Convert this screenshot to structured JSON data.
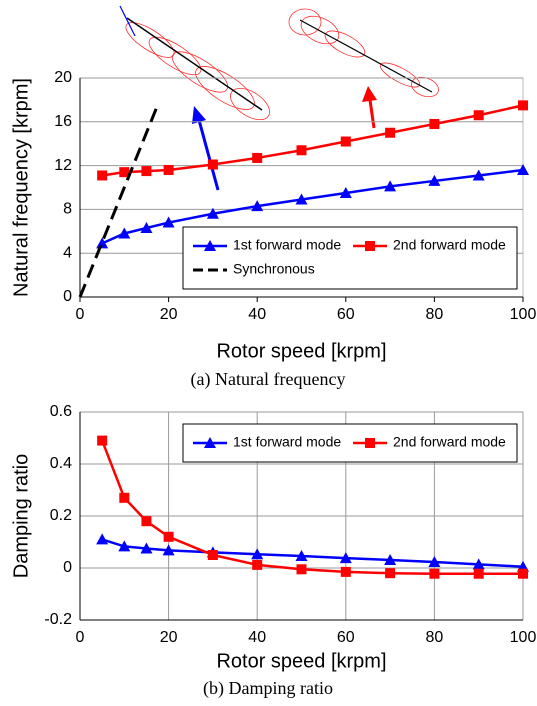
{
  "chart_data": [
    {
      "type": "line",
      "caption": "(a) Natural frequency",
      "xlabel": "Rotor speed [krpm]",
      "ylabel": "Natural frequency [krpm]",
      "xlim": [
        0,
        100
      ],
      "xticks": [
        0,
        20,
        40,
        60,
        80,
        100
      ],
      "ylim": [
        0,
        20
      ],
      "yticks": [
        0,
        4,
        8,
        12,
        16,
        20
      ],
      "grid": "y",
      "legend": "lower right",
      "series": [
        {
          "name": "1st forward mode",
          "color": "#0000ff",
          "marker": "triangle",
          "dash": false,
          "x": [
            5,
            10,
            15,
            20,
            30,
            40,
            50,
            60,
            70,
            80,
            90,
            100
          ],
          "values": [
            4.9,
            5.8,
            6.3,
            6.8,
            7.6,
            8.3,
            8.9,
            9.5,
            10.1,
            10.6,
            11.1,
            11.6
          ]
        },
        {
          "name": "2nd forward mode",
          "color": "#ff0000",
          "marker": "square",
          "dash": false,
          "x": [
            5,
            10,
            15,
            20,
            30,
            40,
            50,
            60,
            70,
            80,
            90,
            100
          ],
          "values": [
            11.1,
            11.4,
            11.5,
            11.6,
            12.1,
            12.7,
            13.4,
            14.2,
            15.0,
            15.8,
            16.6,
            17.5
          ]
        },
        {
          "name": "Synchronous",
          "color": "#000000",
          "marker": "none",
          "dash": true,
          "x": [
            0,
            17.5
          ],
          "values": [
            0,
            17.5
          ]
        }
      ]
    },
    {
      "type": "line",
      "caption": "(b) Damping ratio",
      "xlabel": "Rotor speed [krpm]",
      "ylabel": "Damping ratio",
      "xlim": [
        0,
        100
      ],
      "xticks": [
        0,
        20,
        40,
        60,
        80,
        100
      ],
      "ylim": [
        -0.2,
        0.6
      ],
      "yticks": [
        -0.2,
        0,
        0.2,
        0.4,
        0.6
      ],
      "grid": "both",
      "legend": "upper right",
      "series": [
        {
          "name": "1st forward mode",
          "color": "#0000ff",
          "marker": "triangle",
          "dash": false,
          "x": [
            5,
            10,
            15,
            20,
            30,
            40,
            50,
            60,
            70,
            80,
            90,
            100
          ],
          "values": [
            0.11,
            0.083,
            0.075,
            0.068,
            0.06,
            0.053,
            0.046,
            0.038,
            0.031,
            0.023,
            0.014,
            0.005
          ]
        },
        {
          "name": "2nd forward mode",
          "color": "#ff0000",
          "marker": "square",
          "dash": false,
          "x": [
            5,
            10,
            15,
            20,
            30,
            40,
            50,
            60,
            70,
            80,
            90,
            100
          ],
          "values": [
            0.49,
            0.27,
            0.18,
            0.12,
            0.05,
            0.012,
            -0.005,
            -0.015,
            -0.02,
            -0.022,
            -0.022,
            -0.022
          ]
        }
      ]
    }
  ]
}
